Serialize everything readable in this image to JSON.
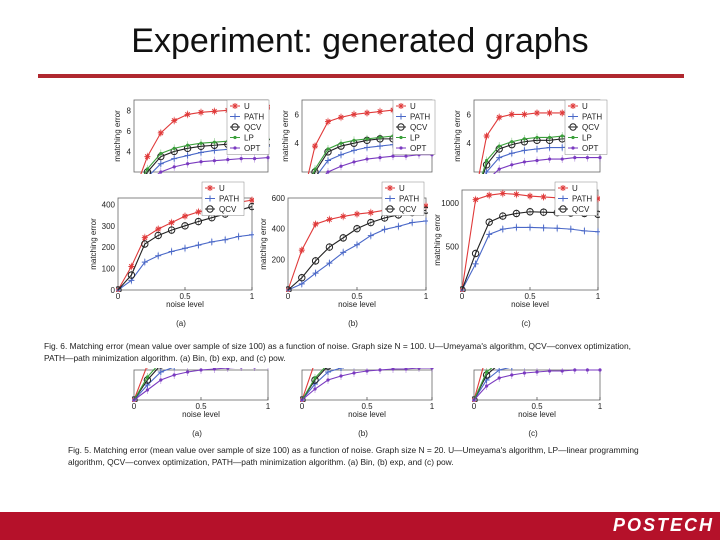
{
  "slide": {
    "title": "Experiment: generated graphs",
    "footer_logo": "POSTECH",
    "colors": {
      "accent": "#b0282f",
      "footer": "#b5112a"
    }
  },
  "captions": {
    "fig6": "Fig. 6. Matching error (mean value over sample of size 100) as a function of noise. Graph size N = 100. U—Umeyama's algorithm, QCV—convex optimization, PATH—path minimization algorithm. (a) Bin, (b) exp, and (c) pow.",
    "fig5": "Fig. 5. Matching error (mean value over sample of size 100) as a function of noise. Graph size N = 20. U—Umeyama's algorithm, LP—linear programming algorithm, QCV—convex optimization, PATH—path minimization algorithm. (a) Bin, (b) exp, and (c) pow."
  },
  "series_styles": {
    "U": {
      "color": "#e03a3a",
      "marker": "star"
    },
    "PATH": {
      "color": "#4a68c8",
      "marker": "plus"
    },
    "QCV": {
      "color": "#222222",
      "marker": "circle"
    },
    "LP": {
      "color": "#3aa03a",
      "marker": "dot"
    },
    "OPT": {
      "color": "#7a3ac0",
      "marker": "dot"
    }
  },
  "chart_data": [
    {
      "type": "line",
      "panel": "(a)",
      "xlabel": "noise level",
      "ylabel": "matching error",
      "xlim": [
        0,
        1
      ],
      "ylim": [
        0,
        430
      ],
      "xticks": [
        "0",
        "0.5",
        "1"
      ],
      "yticks": [
        "0",
        "100",
        "200",
        "300",
        "400"
      ],
      "legend": [
        "U",
        "PATH",
        "QCV"
      ],
      "x": [
        0,
        0.1,
        0.2,
        0.3,
        0.4,
        0.5,
        0.6,
        0.7,
        0.8,
        0.9,
        1.0
      ],
      "series": [
        {
          "name": "U",
          "values": [
            0,
            110,
            245,
            285,
            315,
            345,
            365,
            380,
            395,
            410,
            420
          ]
        },
        {
          "name": "PATH",
          "values": [
            0,
            45,
            130,
            160,
            180,
            195,
            210,
            225,
            235,
            250,
            258
          ]
        },
        {
          "name": "QCV",
          "values": [
            0,
            70,
            215,
            255,
            280,
            300,
            320,
            338,
            355,
            372,
            390
          ]
        }
      ]
    },
    {
      "type": "line",
      "panel": "(b)",
      "xlabel": "noise level",
      "ylabel": "matching error",
      "xlim": [
        0,
        1
      ],
      "ylim": [
        0,
        600
      ],
      "xticks": [
        "0",
        "0.5",
        "1"
      ],
      "yticks": [
        "200",
        "400",
        "600"
      ],
      "legend": [
        "U",
        "PATH",
        "QCV"
      ],
      "x": [
        0,
        0.1,
        0.2,
        0.3,
        0.4,
        0.5,
        0.6,
        0.7,
        0.8,
        0.9,
        1.0
      ],
      "series": [
        {
          "name": "U",
          "values": [
            0,
            260,
            430,
            460,
            480,
            495,
            505,
            520,
            530,
            540,
            548
          ]
        },
        {
          "name": "PATH",
          "values": [
            0,
            40,
            110,
            175,
            245,
            295,
            355,
            395,
            415,
            440,
            450
          ]
        },
        {
          "name": "QCV",
          "values": [
            0,
            80,
            190,
            280,
            340,
            400,
            440,
            470,
            490,
            505,
            520
          ]
        }
      ]
    },
    {
      "type": "line",
      "panel": "(c)",
      "xlabel": "noise level",
      "ylabel": "matching error",
      "xlim": [
        0,
        1
      ],
      "ylim": [
        0,
        1150
      ],
      "xticks": [
        "0",
        "0.5",
        "1"
      ],
      "yticks": [
        "500",
        "1000"
      ],
      "legend": [
        "U",
        "PATH",
        "QCV"
      ],
      "x": [
        0,
        0.1,
        0.2,
        0.3,
        0.4,
        0.5,
        0.6,
        0.7,
        0.8,
        0.9,
        1.0
      ],
      "series": [
        {
          "name": "U",
          "values": [
            0,
            1040,
            1090,
            1110,
            1100,
            1080,
            1070,
            1060,
            1060,
            1055,
            1050
          ]
        },
        {
          "name": "PATH",
          "values": [
            0,
            300,
            640,
            700,
            720,
            720,
            715,
            710,
            700,
            680,
            670
          ]
        },
        {
          "name": "QCV",
          "values": [
            0,
            420,
            780,
            850,
            880,
            900,
            895,
            890,
            885,
            880,
            870
          ]
        }
      ]
    },
    {
      "type": "line",
      "panel": "(a)",
      "figure": "Fig. 5",
      "xlabel": "noise level",
      "ylabel": "matching error",
      "xlim": [
        0,
        1
      ],
      "ylim": [
        0,
        9
      ],
      "xticks": [
        "0",
        "0.5",
        "1"
      ],
      "yticks": [
        "4",
        "6",
        "8"
      ],
      "legend": [
        "U",
        "PATH",
        "QCV",
        "LP",
        "OPT"
      ],
      "x": [
        0,
        0.1,
        0.2,
        0.3,
        0.4,
        0.5,
        0.6,
        0.7,
        0.8,
        0.9,
        1.0
      ],
      "series": [
        {
          "name": "U",
          "values": [
            0,
            3.5,
            5.8,
            7.0,
            7.6,
            7.8,
            7.9,
            8.0,
            8.1,
            8.2,
            8.3
          ]
        },
        {
          "name": "PATH",
          "values": [
            0,
            1.5,
            2.8,
            3.3,
            3.6,
            3.9,
            4.1,
            4.2,
            4.3,
            4.4,
            4.5
          ]
        },
        {
          "name": "QCV",
          "values": [
            0,
            2.0,
            3.5,
            4.0,
            4.3,
            4.5,
            4.6,
            4.7,
            4.8,
            4.8,
            4.9
          ]
        },
        {
          "name": "LP",
          "values": [
            0,
            2.3,
            3.8,
            4.3,
            4.6,
            4.8,
            4.9,
            5.0,
            5.1,
            5.1,
            5.2
          ]
        },
        {
          "name": "OPT",
          "values": [
            0,
            1.0,
            2.0,
            2.5,
            2.8,
            3.0,
            3.1,
            3.2,
            3.3,
            3.3,
            3.4
          ]
        }
      ]
    },
    {
      "type": "line",
      "panel": "(b)",
      "figure": "Fig. 5",
      "xlabel": "noise level",
      "ylabel": "matching error",
      "xlim": [
        0,
        1
      ],
      "ylim": [
        0,
        7
      ],
      "xticks": [
        "0",
        "0.5",
        "1"
      ],
      "yticks": [
        "4",
        "6"
      ],
      "legend": [
        "U",
        "PATH",
        "QCV",
        "LP",
        "OPT"
      ],
      "x": [
        0,
        0.1,
        0.2,
        0.3,
        0.4,
        0.5,
        0.6,
        0.7,
        0.8,
        0.9,
        1.0
      ],
      "series": [
        {
          "name": "U",
          "values": [
            0,
            3.8,
            5.5,
            5.8,
            6.0,
            6.1,
            6.2,
            6.3,
            6.3,
            6.4,
            6.4
          ]
        },
        {
          "name": "PATH",
          "values": [
            0,
            1.6,
            2.8,
            3.2,
            3.5,
            3.7,
            3.8,
            3.9,
            3.9,
            4.0,
            4.0
          ]
        },
        {
          "name": "QCV",
          "values": [
            0,
            2.0,
            3.4,
            3.8,
            4.0,
            4.2,
            4.3,
            4.3,
            4.4,
            4.4,
            4.5
          ]
        },
        {
          "name": "LP",
          "values": [
            0,
            2.2,
            3.6,
            4.0,
            4.2,
            4.3,
            4.4,
            4.5,
            4.5,
            4.6,
            4.6
          ]
        },
        {
          "name": "OPT",
          "values": [
            0,
            1.1,
            2.0,
            2.4,
            2.7,
            2.9,
            3.0,
            3.1,
            3.1,
            3.2,
            3.2
          ]
        }
      ]
    },
    {
      "type": "line",
      "panel": "(c)",
      "figure": "Fig. 5",
      "xlabel": "noise level",
      "ylabel": "matching error",
      "xlim": [
        0,
        1
      ],
      "ylim": [
        0,
        7
      ],
      "xticks": [
        "0",
        "0.5",
        "1"
      ],
      "yticks": [
        "4",
        "6"
      ],
      "legend": [
        "U",
        "PATH",
        "QCV",
        "LP",
        "OPT"
      ],
      "x": [
        0,
        0.1,
        0.2,
        0.3,
        0.4,
        0.5,
        0.6,
        0.7,
        0.8,
        0.9,
        1.0
      ],
      "series": [
        {
          "name": "U",
          "values": [
            0,
            4.5,
            5.8,
            6.0,
            6.0,
            6.1,
            6.1,
            6.1,
            6.2,
            6.2,
            6.2
          ]
        },
        {
          "name": "PATH",
          "values": [
            0,
            2.0,
            3.0,
            3.3,
            3.5,
            3.6,
            3.7,
            3.7,
            3.8,
            3.8,
            3.8
          ]
        },
        {
          "name": "QCV",
          "values": [
            0,
            2.5,
            3.6,
            3.9,
            4.1,
            4.2,
            4.2,
            4.3,
            4.3,
            4.3,
            4.4
          ]
        },
        {
          "name": "LP",
          "values": [
            0,
            2.8,
            3.8,
            4.1,
            4.3,
            4.4,
            4.4,
            4.5,
            4.5,
            4.5,
            4.6
          ]
        },
        {
          "name": "OPT",
          "values": [
            0,
            1.4,
            2.2,
            2.5,
            2.7,
            2.8,
            2.9,
            2.9,
            3.0,
            3.0,
            3.0
          ]
        }
      ]
    }
  ]
}
